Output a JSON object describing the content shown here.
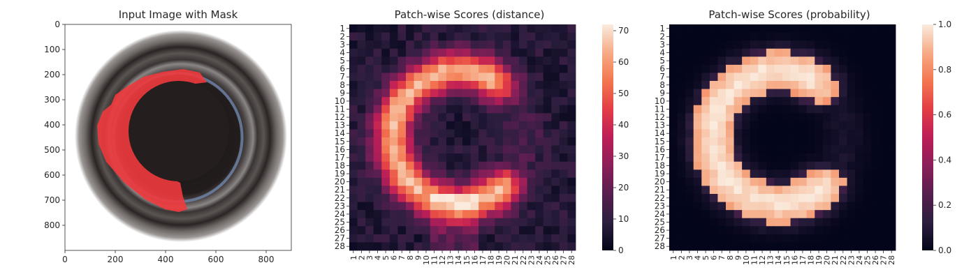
{
  "chart_data": [
    {
      "type": "image",
      "title": "Input Image with Mask",
      "xlim": [
        0,
        900
      ],
      "ylim": [
        900,
        0
      ],
      "x_ticks": [
        "0",
        "200",
        "400",
        "600",
        "800"
      ],
      "y_ticks": [
        "0",
        "100",
        "200",
        "300",
        "400",
        "500",
        "600",
        "700",
        "800"
      ],
      "image_content": "circular-bottle-top-with-red-mask"
    },
    {
      "type": "heatmap",
      "title": "Patch-wise Scores (distance)",
      "x_labels": [
        "1",
        "2",
        "3",
        "4",
        "5",
        "6",
        "7",
        "8",
        "9",
        "10",
        "11",
        "12",
        "13",
        "14",
        "15",
        "16",
        "17",
        "18",
        "19",
        "20",
        "21",
        "22",
        "23",
        "24",
        "25",
        "26",
        "27",
        "28"
      ],
      "y_labels": [
        "1",
        "2",
        "3",
        "4",
        "5",
        "6",
        "7",
        "8",
        "9",
        "10",
        "11",
        "12",
        "13",
        "14",
        "15",
        "16",
        "17",
        "18",
        "19",
        "20",
        "21",
        "22",
        "23",
        "24",
        "25",
        "26",
        "27",
        "28"
      ],
      "colorbar_ticks": [
        "0",
        "10",
        "20",
        "30",
        "40",
        "50",
        "60",
        "70"
      ],
      "vmin": 0,
      "vmax": 72,
      "colormap": "rocket",
      "pattern": "C-shaped ring, high values along ring, max ~70 near row 24 col 14"
    },
    {
      "type": "heatmap",
      "title": "Patch-wise Scores (probability)",
      "x_labels": [
        "1",
        "2",
        "3",
        "4",
        "5",
        "6",
        "7",
        "8",
        "9",
        "10",
        "11",
        "12",
        "13",
        "14",
        "15",
        "16",
        "17",
        "18",
        "19",
        "20",
        "21",
        "22",
        "23",
        "24",
        "25",
        "26",
        "27",
        "28"
      ],
      "y_labels": [
        "1",
        "2",
        "3",
        "4",
        "5",
        "6",
        "7",
        "8",
        "9",
        "10",
        "11",
        "12",
        "13",
        "14",
        "15",
        "16",
        "17",
        "18",
        "19",
        "20",
        "21",
        "22",
        "23",
        "24",
        "25",
        "26",
        "27",
        "28"
      ],
      "colorbar_ticks": [
        "0.0",
        "0.2",
        "0.4",
        "0.6",
        "0.8",
        "1.0"
      ],
      "vmin": 0,
      "vmax": 1,
      "colormap": "rocket",
      "pattern": "C-shaped ring near 1.0, background near 0.0"
    }
  ]
}
